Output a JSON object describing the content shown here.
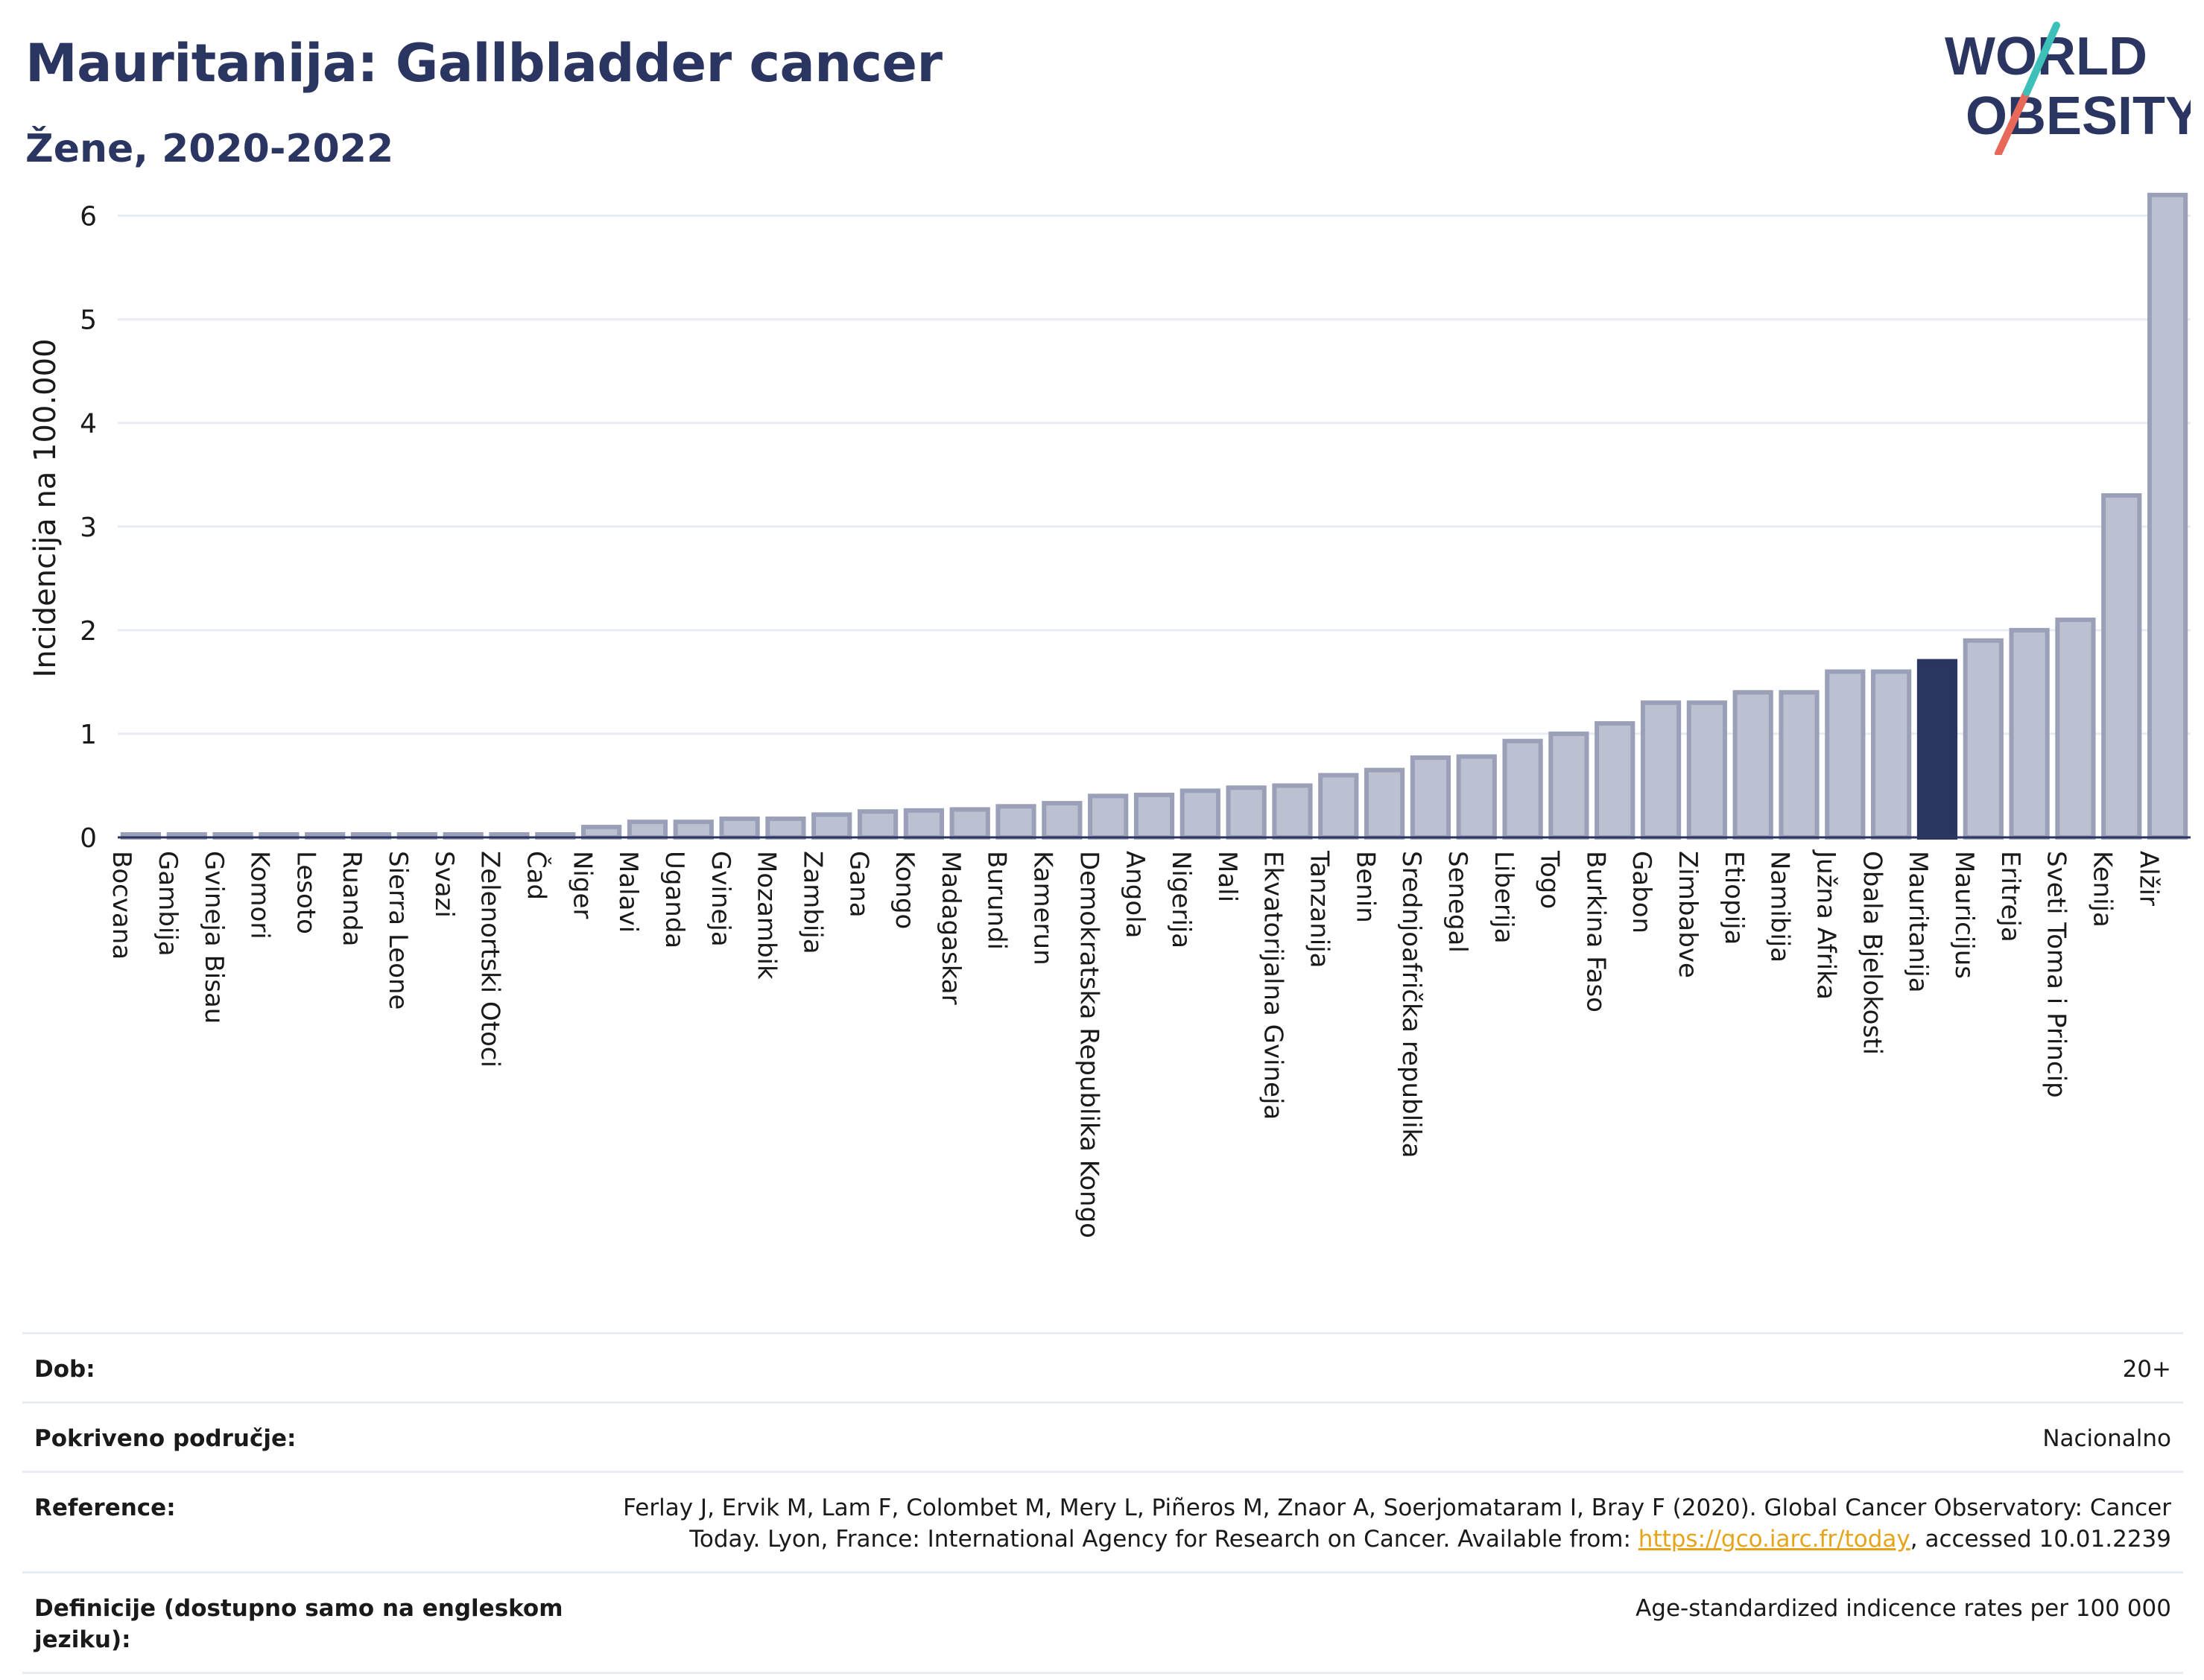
{
  "header": {
    "title": "Mauritanija: Gallbladder cancer",
    "subtitle": "Žene, 2020-2022"
  },
  "logo": {
    "line1": "WORLD",
    "line2": "OBESITY",
    "colors": {
      "text": "#2b3561",
      "slash_top": "#3cc0b9",
      "slash_bottom": "#e8685a"
    }
  },
  "chart_data": {
    "type": "bar",
    "ylabel": "Incidencija na 100.000",
    "xlabel": "",
    "ylim": [
      0,
      6.5
    ],
    "yticks": [
      0,
      1,
      2,
      3,
      4,
      5,
      6
    ],
    "grid": true,
    "highlight": "Mauritanija",
    "colors": {
      "bar": "#bcc1d2",
      "bar_border": "#9aa0b8",
      "highlight": "#2b3561",
      "grid": "#e8ebf2"
    },
    "categories": [
      "Bocvana",
      "Gambija",
      "Gvineja Bisau",
      "Komori",
      "Lesoto",
      "Ruanda",
      "Sierra Leone",
      "Svazi",
      "Zelenortski Otoci",
      "Čad",
      "Niger",
      "Malavi",
      "Uganda",
      "Gvineja",
      "Mozambik",
      "Zambija",
      "Gana",
      "Kongo",
      "Madagaskar",
      "Burundi",
      "Kamerun",
      "Demokratska Republika Kongo",
      "Angola",
      "Nigerija",
      "Mali",
      "Ekvatorijalna Gvineja",
      "Tanzanija",
      "Benin",
      "Srednjoafrička republika",
      "Senegal",
      "Liberija",
      "Togo",
      "Burkina Faso",
      "Gabon",
      "Zimbabve",
      "Etiopija",
      "Namibija",
      "Južna Afrika",
      "Obala Bjelokosti",
      "Mauritanija",
      "Mauricijus",
      "Eritreja",
      "Sveti Toma i Princip",
      "Kenija",
      "Alžir"
    ],
    "values": [
      0.02,
      0.02,
      0.02,
      0.02,
      0.02,
      0.02,
      0.02,
      0.02,
      0.02,
      0.02,
      0.1,
      0.15,
      0.15,
      0.18,
      0.18,
      0.22,
      0.25,
      0.26,
      0.27,
      0.3,
      0.33,
      0.4,
      0.41,
      0.45,
      0.48,
      0.5,
      0.6,
      0.65,
      0.77,
      0.78,
      0.93,
      1.0,
      1.1,
      1.3,
      1.3,
      1.4,
      1.4,
      1.6,
      1.6,
      1.7,
      1.9,
      2.0,
      2.1,
      3.3,
      6.2
    ]
  },
  "meta": [
    {
      "label": "Dob:",
      "value": "20+"
    },
    {
      "label": "Pokriveno područje:",
      "value": "Nacionalno"
    },
    {
      "label": "Reference:",
      "value_pre": "Ferlay J, Ervik M, Lam F, Colombet M, Mery L, Piñeros M, Znaor A, Soerjomataram I, Bray F (2020). Global Cancer Observatory: Cancer Today. Lyon, France: International Agency for Research on Cancer. Available from: ",
      "link": "https://gco.iarc.fr/today",
      "value_post": ", accessed 10.01.2239"
    },
    {
      "label": "Definicije (dostupno samo na engleskom jeziku):",
      "value": "Age-standardized indicence rates per 100 000"
    }
  ]
}
